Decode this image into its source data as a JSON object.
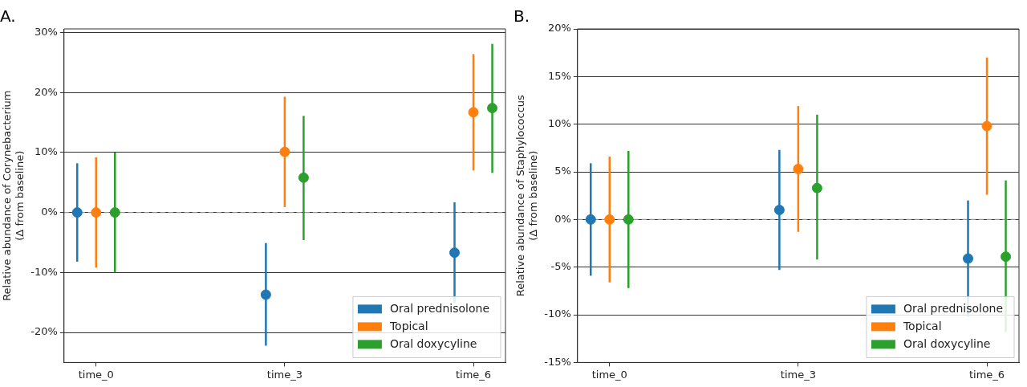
{
  "chart_data": [
    {
      "type": "scatter",
      "title": "A.",
      "ylabel": "Relative abundance of Corynebacterium\n(Δ from baseline)",
      "categories": [
        "time_0",
        "time_3",
        "time_6"
      ],
      "series": [
        {
          "name": "Oral prednisolone",
          "color": "#1f77b4",
          "values": [
            0,
            -13.7,
            -6.7
          ],
          "errors": [
            [
              -8.2,
              8.2
            ],
            [
              -22.2,
              -5.1
            ],
            [
              -15.1,
              1.7
            ]
          ]
        },
        {
          "name": "Topical",
          "color": "#ff7f0e",
          "values": [
            0,
            10.1,
            16.7
          ],
          "errors": [
            [
              -9.2,
              9.2
            ],
            [
              0.9,
              19.3
            ],
            [
              7,
              26.4
            ]
          ]
        },
        {
          "name": "Oral doxycyline",
          "color": "#2ca02c",
          "values": [
            0,
            5.8,
            17.4
          ],
          "errors": [
            [
              -10,
              10
            ],
            [
              -4.6,
              16.1
            ],
            [
              6.6,
              28.1
            ]
          ]
        }
      ],
      "ylim": [
        -25,
        30.6
      ],
      "yticks": [
        {
          "value": -20,
          "label": "-20%"
        },
        {
          "value": -10,
          "label": "-10%"
        },
        {
          "value": 0,
          "label": "0%"
        },
        {
          "value": 10,
          "label": "10%"
        },
        {
          "value": 20,
          "label": "20%"
        },
        {
          "value": 30,
          "label": "30%"
        }
      ],
      "ref_lines": [
        {
          "axis": "y",
          "value": 0,
          "color": "#999999",
          "line_style": "dashed"
        }
      ],
      "grid": "y",
      "legend": "bottom right",
      "marker": "circle"
    },
    {
      "type": "scatter",
      "title": "B.",
      "ylabel": "Relative abundance of Staphylococcus\n(Δ from baseline)",
      "categories": [
        "time_0",
        "time_3",
        "time_6"
      ],
      "series": [
        {
          "name": "Oral prednisolone",
          "color": "#1f77b4",
          "values": [
            0,
            1.0,
            -4.1
          ],
          "errors": [
            [
              -5.9,
              5.9
            ],
            [
              -5.3,
              7.3
            ],
            [
              -10.2,
              2.0
            ]
          ]
        },
        {
          "name": "Topical",
          "color": "#ff7f0e",
          "values": [
            0,
            5.3,
            9.8
          ],
          "errors": [
            [
              -6.6,
              6.6
            ],
            [
              -1.3,
              11.9
            ],
            [
              2.6,
              17.0
            ]
          ]
        },
        {
          "name": "Oral doxycyline",
          "color": "#2ca02c",
          "values": [
            0,
            3.3,
            -3.9
          ],
          "errors": [
            [
              -7.2,
              7.2
            ],
            [
              -4.2,
              11.0
            ],
            [
              -11.8,
              4.1
            ]
          ]
        }
      ],
      "ylim": [
        -15,
        20
      ],
      "yticks": [
        {
          "value": -15,
          "label": "-15%"
        },
        {
          "value": -10,
          "label": "-10%"
        },
        {
          "value": -5,
          "label": "-5%"
        },
        {
          "value": 0,
          "label": "0%"
        },
        {
          "value": 5,
          "label": "5%"
        },
        {
          "value": 10,
          "label": "10%"
        },
        {
          "value": 15,
          "label": "15%"
        },
        {
          "value": 20,
          "label": "20%"
        }
      ],
      "ref_lines": [
        {
          "axis": "y",
          "value": 0,
          "color": "#999999",
          "line_style": "dashed"
        }
      ],
      "grid": "y",
      "legend": "bottom right",
      "marker": "circle"
    }
  ]
}
